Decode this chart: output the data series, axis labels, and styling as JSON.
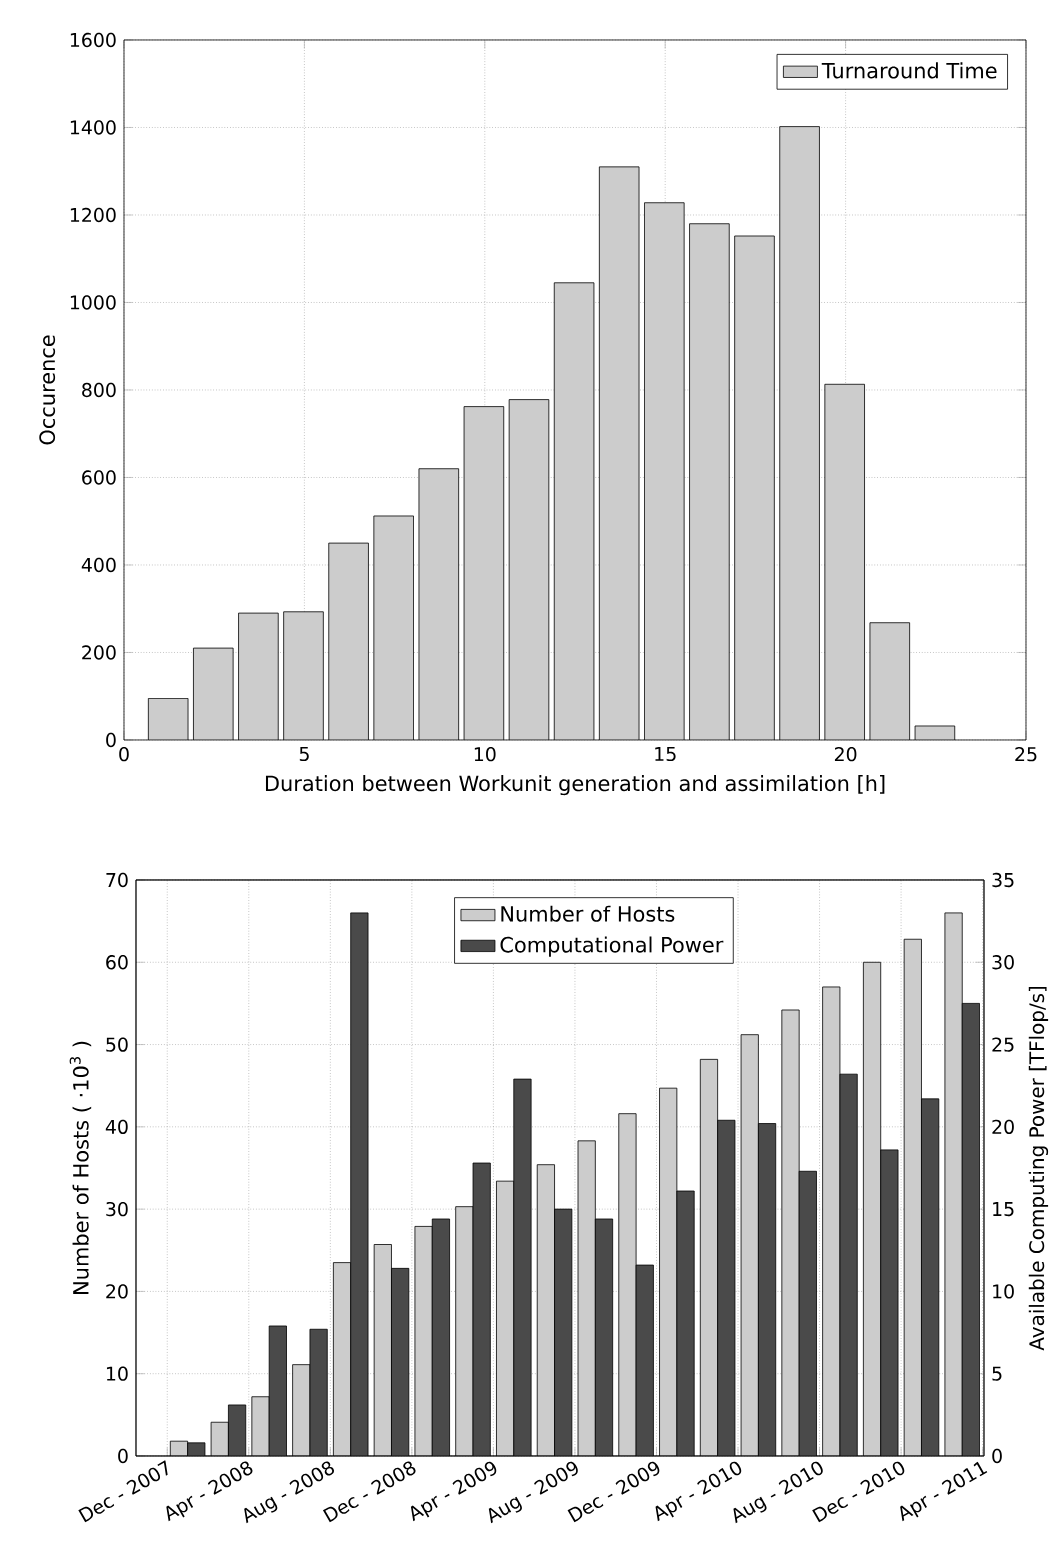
{
  "chart_data": [
    {
      "type": "histogram",
      "xlabel": "Duration between Workunit generation and assimilation [h]",
      "ylabel": "Occurence",
      "bins": [
        0.6,
        1.85,
        3.1,
        4.35,
        5.6,
        6.85,
        8.1,
        9.35,
        10.6,
        11.85,
        13.1,
        14.35,
        15.6,
        16.85,
        18.1,
        19.35,
        20.6,
        21.85,
        23.1
      ],
      "series": [
        {
          "name": "Turnaround Time",
          "color": "#cccccc",
          "values": [
            95,
            210,
            290,
            293,
            450,
            512,
            620,
            762,
            778,
            1045,
            1310,
            1228,
            1180,
            1152,
            1402,
            813,
            268,
            32
          ]
        }
      ],
      "xlim": [
        0,
        25
      ],
      "xticks": [
        0,
        5,
        10,
        15,
        20,
        25
      ],
      "ylim": [
        0,
        1600
      ],
      "yticks": [
        0,
        200,
        400,
        600,
        800,
        1000,
        1200,
        1400,
        1600
      ],
      "grid": true,
      "legend": "top right"
    },
    {
      "type": "bar",
      "ylabel": "Number of Hosts ( ·10$^{3}$ )",
      "y2label": "Available Computing Power [TFlop/s]",
      "x": [
        "2008-01",
        "2008-03",
        "2008-05",
        "2008-07",
        "2008-09",
        "2008-11",
        "2009-01",
        "2009-03",
        "2009-05",
        "2009-07",
        "2009-09",
        "2009-11",
        "2010-01",
        "2010-03",
        "2010-05",
        "2010-07",
        "2010-09",
        "2010-11",
        "2011-01",
        "2011-03"
      ],
      "series": [
        {
          "name": "Number of Hosts",
          "color": "#cccccc",
          "values": [
            1.8,
            4.1,
            7.2,
            11.1,
            23.5,
            25.7,
            27.9,
            30.3,
            33.4,
            35.4,
            38.3,
            41.6,
            44.7,
            48.2,
            51.2,
            54.2,
            57.0,
            60.0,
            62.8,
            66.0
          ]
        },
        {
          "name": "Computational Power",
          "color": "#4a4a4a",
          "axis": "y2",
          "values": [
            0.8,
            3.1,
            7.9,
            7.7,
            33.0,
            11.4,
            14.4,
            17.8,
            22.9,
            15.0,
            14.4,
            11.6,
            16.1,
            20.4,
            20.2,
            17.3,
            23.2,
            18.6,
            21.7,
            27.5
          ]
        }
      ],
      "xlim": [
        "2007-10-15",
        "2011-04-03"
      ],
      "xticks": [
        {
          "value": "2007-12",
          "label": "Dec - 2007"
        },
        {
          "value": "2008-04",
          "label": "Apr - 2008"
        },
        {
          "value": "2008-08",
          "label": "Aug - 2008"
        },
        {
          "value": "2008-12",
          "label": "Dec - 2008"
        },
        {
          "value": "2009-04",
          "label": "Apr - 2009"
        },
        {
          "value": "2009-08",
          "label": "Aug - 2009"
        },
        {
          "value": "2009-12",
          "label": "Dec - 2009"
        },
        {
          "value": "2010-04",
          "label": "Apr - 2010"
        },
        {
          "value": "2010-08",
          "label": "Aug - 2010"
        },
        {
          "value": "2010-12",
          "label": "Dec - 2010"
        },
        {
          "value": "2011-04",
          "label": "Apr - 2011"
        }
      ],
      "ylim": [
        0,
        70
      ],
      "yticks": [
        0,
        10,
        20,
        30,
        40,
        50,
        60,
        70
      ],
      "y2lim": [
        0,
        35
      ],
      "y2ticks": [
        0,
        5,
        10,
        15,
        20,
        25,
        30,
        35
      ],
      "grid": true,
      "legend": "top"
    }
  ]
}
